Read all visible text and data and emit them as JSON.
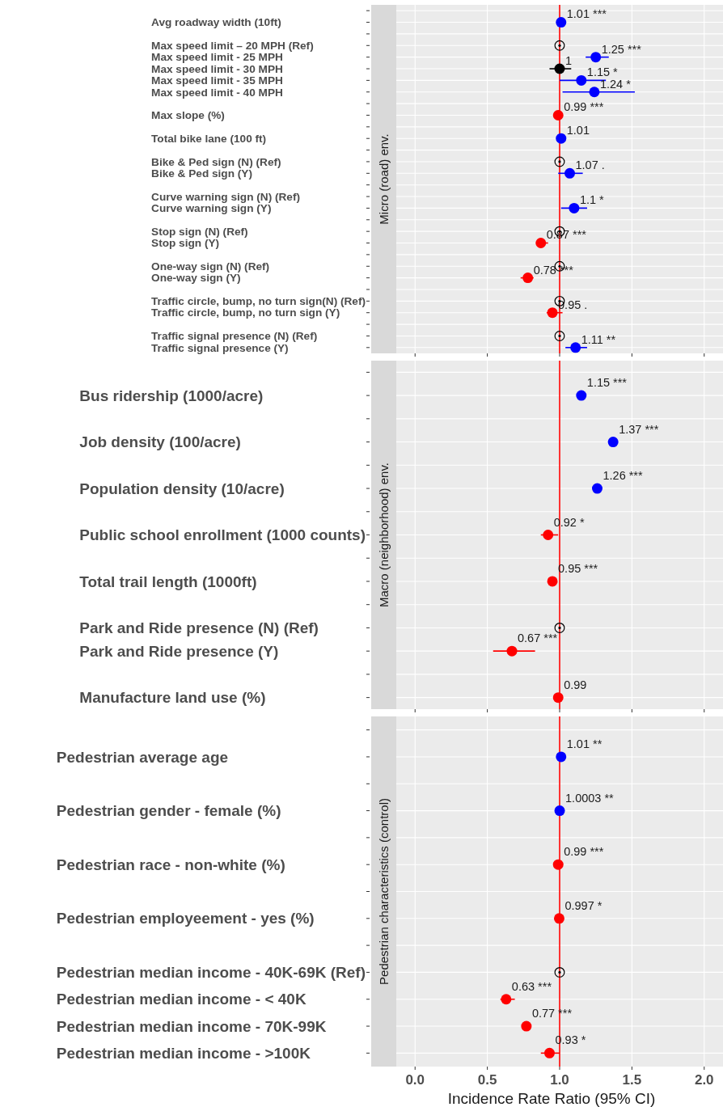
{
  "chart_data": [
    {
      "type": "scatter",
      "orientation": "horizontal",
      "title": "Micro (road) env.",
      "grid": true,
      "tick_labels": "y",
      "xlim": [
        -0.13,
        2.13
      ],
      "xticks": [
        {
          "value": 0,
          "label": null
        },
        {
          "value": 0.5,
          "label": null
        },
        {
          "value": 1,
          "label": null
        },
        {
          "value": 1.5,
          "label": null
        },
        {
          "value": 2,
          "label": null
        }
      ],
      "ref_lines": [
        {
          "axis": "x",
          "value": 1,
          "color": "#ff0000"
        }
      ],
      "categories": [
        null,
        "Avg roadway width (10ft)",
        null,
        "Max speed limit – 20 MPH (Ref)",
        "Max speed limit - 25 MPH",
        "Max speed limit - 30 MPH",
        "Max speed limit - 35 MPH",
        "Max speed limit - 40 MPH",
        null,
        "Max slope (%)",
        null,
        "Total bike lane (100 ft)",
        null,
        "Bike & Ped sign (N) (Ref)",
        "Bike & Ped sign (Y)",
        null,
        "Curve warning sign (N) (Ref)",
        "Curve warning sign (Y)",
        null,
        "Stop sign (N) (Ref)",
        "Stop sign (Y)",
        null,
        "One-way sign (N) (Ref)",
        "One-way sign (Y)",
        null,
        "Traffic circle, bump, no turn sign(N) (Ref)",
        "Traffic circle, bump, no turn sign (Y)",
        null,
        "Traffic signal presence (N) (Ref)",
        "Traffic signal presence (Y)"
      ],
      "series": [
        {
          "marker": "circle",
          "values": [
            null,
            1.01,
            null,
            null,
            1.25,
            1,
            1.15,
            1.24,
            null,
            0.99,
            null,
            1.01,
            null,
            null,
            1.07,
            null,
            null,
            1.1,
            null,
            null,
            0.87,
            null,
            null,
            0.78,
            null,
            null,
            0.95,
            null,
            null,
            1.11
          ],
          "colors": [
            null,
            "#0000ff",
            null,
            null,
            "#0000ff",
            "#000000",
            "#0000ff",
            "#0000ff",
            null,
            "#ff0000",
            null,
            "#0000ff",
            null,
            null,
            "#0000ff",
            null,
            null,
            "#0000ff",
            null,
            null,
            "#ff0000",
            null,
            null,
            "#ff0000",
            null,
            null,
            "#ff0000",
            null,
            null,
            "#0000ff"
          ],
          "errors": [
            null,
            null,
            null,
            null,
            [
              1.18,
              1.34
            ],
            [
              0.93,
              1.08
            ],
            [
              1.0,
              1.32
            ],
            [
              1.02,
              1.52
            ],
            null,
            null,
            null,
            null,
            null,
            null,
            [
              0.99,
              1.16
            ],
            null,
            null,
            [
              1.01,
              1.19
            ],
            null,
            null,
            [
              0.84,
              0.92
            ],
            null,
            null,
            [
              0.73,
              0.82
            ],
            null,
            null,
            [
              0.91,
              1.02
            ],
            null,
            null,
            [
              1.04,
              1.19
            ]
          ],
          "value_labels": [
            null,
            "1.01 ***",
            null,
            null,
            "1.25 ***",
            "1",
            "1.15 *",
            "1.24 *",
            null,
            "0.99 ***",
            null,
            "1.01",
            null,
            null,
            "1.07 .",
            null,
            null,
            "1.1 *",
            null,
            null,
            "0.87 ***",
            null,
            null,
            "0.78 ***",
            null,
            null,
            "0.95 .",
            null,
            null,
            "1.11 **"
          ]
        },
        {
          "color": "#000000",
          "values": [
            null,
            null,
            null,
            1,
            null,
            null,
            null,
            null,
            null,
            null,
            null,
            null,
            null,
            1,
            null,
            null,
            null,
            null,
            null,
            1,
            null,
            null,
            1,
            null,
            null,
            1,
            null,
            null,
            1,
            null
          ]
        }
      ]
    },
    {
      "type": "scatter",
      "orientation": "horizontal",
      "title": "Macro (neighborhood) env.",
      "grid": true,
      "tick_labels": "y",
      "xlim": [
        -0.13,
        2.13
      ],
      "xticks": [
        {
          "value": 0,
          "label": null
        },
        {
          "value": 0.5,
          "label": null
        },
        {
          "value": 1,
          "label": null
        },
        {
          "value": 1.5,
          "label": null
        },
        {
          "value": 2,
          "label": null
        }
      ],
      "ref_lines": [
        {
          "axis": "x",
          "value": 1,
          "color": "#ff0000"
        }
      ],
      "categories": [
        null,
        "Bus ridership (1000/acre)",
        null,
        "Job density (100/acre)",
        null,
        "Population density (10/acre)",
        null,
        "Public school enrollment (1000 counts)",
        null,
        "Total trail length (1000ft)",
        null,
        "Park and Ride presence (N) (Ref)",
        "Park and Ride presence (Y)",
        null,
        "Manufacture land use (%)"
      ],
      "series": [
        {
          "marker": "circle",
          "values": [
            null,
            1.15,
            null,
            1.37,
            null,
            1.26,
            null,
            0.92,
            null,
            0.95,
            null,
            null,
            0.67,
            null,
            0.99
          ],
          "colors": [
            null,
            "#0000ff",
            null,
            "#0000ff",
            null,
            "#0000ff",
            null,
            "#ff0000",
            null,
            "#ff0000",
            null,
            null,
            "#ff0000",
            null,
            "#ff0000"
          ],
          "errors": [
            null,
            null,
            null,
            null,
            null,
            null,
            null,
            [
              0.87,
              0.99
            ],
            null,
            null,
            null,
            null,
            [
              0.54,
              0.83
            ],
            null,
            null
          ],
          "value_labels": [
            null,
            "1.15 ***",
            null,
            "1.37 ***",
            null,
            "1.26 ***",
            null,
            "0.92 *",
            null,
            "0.95 ***",
            null,
            null,
            "0.67 ***",
            null,
            "0.99"
          ]
        },
        {
          "color": "#000000",
          "values": [
            null,
            null,
            null,
            null,
            null,
            null,
            null,
            null,
            null,
            null,
            null,
            1,
            null,
            null,
            null
          ]
        }
      ]
    },
    {
      "type": "scatter",
      "orientation": "horizontal",
      "title": "Pedestrian characteristics (control)",
      "xlabel": "Incidence Rate Ratio (95% CI)",
      "grid": true,
      "xlim": [
        -0.13,
        2.13
      ],
      "xticks": [
        {
          "value": 0,
          "label": "0.0"
        },
        {
          "value": 0.5,
          "label": "0.5"
        },
        {
          "value": 1,
          "label": "1.0"
        },
        {
          "value": 1.5,
          "label": "1.5"
        },
        {
          "value": 2,
          "label": "2.0"
        }
      ],
      "ref_lines": [
        {
          "axis": "x",
          "value": 1,
          "color": "#ff0000"
        }
      ],
      "categories": [
        null,
        "Pedestrian average age",
        null,
        "Pedestrian gender - female (%)",
        null,
        "Pedestrian race - non-white (%)",
        null,
        "Pedestrian employeement - yes (%)",
        null,
        "Pedestrian median income - 40K-69K (Ref)",
        "Pedestrian median income - < 40K",
        "Pedestrian median income - 70K-99K",
        "Pedestrian median income - >100K"
      ],
      "series": [
        {
          "marker": "circle",
          "values": [
            null,
            1.01,
            null,
            1.0003,
            null,
            0.99,
            null,
            0.997,
            null,
            null,
            0.63,
            0.77,
            0.93
          ],
          "colors": [
            null,
            "#0000ff",
            null,
            "#0000ff",
            null,
            "#ff0000",
            null,
            "#ff0000",
            null,
            null,
            "#ff0000",
            "#ff0000",
            "#ff0000"
          ],
          "errors": [
            null,
            null,
            null,
            null,
            null,
            null,
            null,
            null,
            null,
            null,
            [
              0.59,
              0.69
            ],
            null,
            [
              0.87,
              1.0
            ]
          ],
          "value_labels": [
            null,
            "1.01 **",
            null,
            "1.0003 **",
            null,
            "0.99 ***",
            null,
            "0.997 *",
            null,
            null,
            "0.63 ***",
            "0.77 ***",
            "0.93 *"
          ]
        },
        {
          "color": "#000000",
          "values": [
            null,
            null,
            null,
            null,
            null,
            null,
            null,
            null,
            null,
            1,
            null,
            null,
            null
          ]
        }
      ]
    }
  ]
}
